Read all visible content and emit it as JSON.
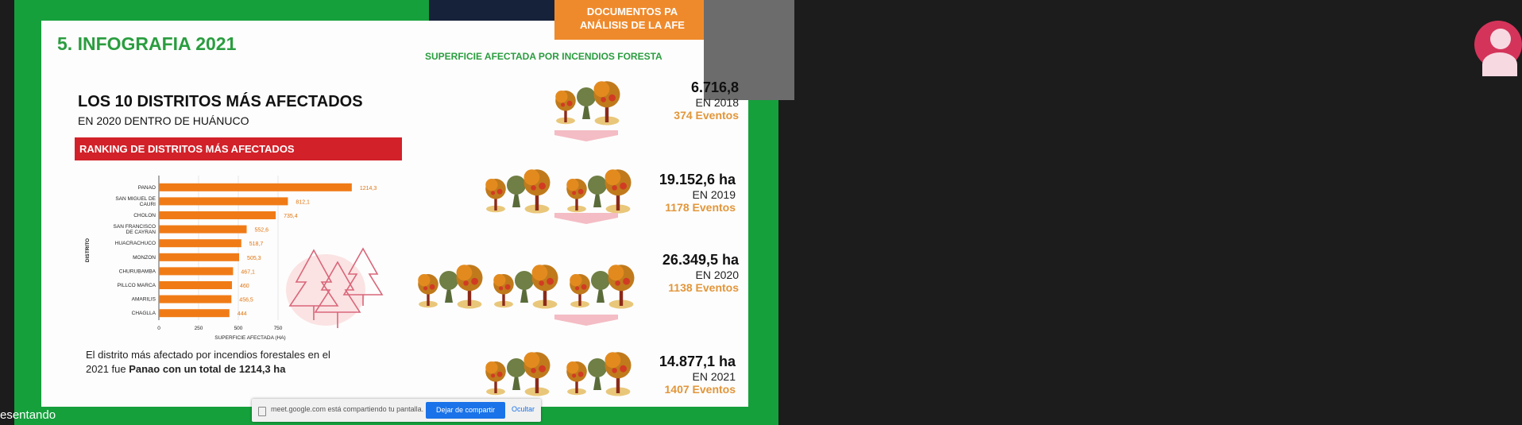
{
  "slide": {
    "heading": "5. INFOGRAFIA 2021",
    "orange_tag": [
      "DOCUMENTOS PA",
      "ANÁLISIS DE LA AFE"
    ],
    "superficie_title": "SUPERFICIE AFECTADA POR INCENDIOS FORESTA",
    "main_title": "LOS 10 DISTRITOS MÁS AFECTADOS",
    "main_subtitle": "EN 2020 DENTRO DE HUÁNUCO",
    "ranking_title": "RANKING DE DISTRITOS MÁS AFECTADOS",
    "conclusion_prefix": "El distrito más afectado por incendios forestales en el 2021 fue ",
    "conclusion_bold": "Panao con un total de 1214,3  ha"
  },
  "colors": {
    "bar": "#f07b16",
    "green": "#2a9d3f",
    "red_banner": "#d22129",
    "orange_tag": "#ef8a2c",
    "events": "#e2963a"
  },
  "chart_data": {
    "type": "bar",
    "orientation": "horizontal",
    "categories": [
      "PANAO",
      "SAN MIGUEL DE CAURI",
      "CHOLON",
      "SAN FRANCISCO DE CAYRAN",
      "HUACRACHUCO",
      "MONZON",
      "CHURUBAMBA",
      "PILLCO MARCA",
      "AMARILIS",
      "CHAGLLA"
    ],
    "category_lines": [
      [
        "PANAO"
      ],
      [
        "SAN MIGUEL DE",
        "CAURI"
      ],
      [
        "CHOLON"
      ],
      [
        "SAN FRANCISCO",
        "DE CAYRAN"
      ],
      [
        "HUACRACHUCO"
      ],
      [
        "MONZON"
      ],
      [
        "CHURUBAMBA"
      ],
      [
        "PILLCO MARCA"
      ],
      [
        "AMARILIS"
      ],
      [
        "CHAGLLA"
      ]
    ],
    "values": [
      1214.3,
      812.1,
      735.4,
      552.6,
      518.7,
      505.3,
      467.1,
      460,
      456.5,
      444
    ],
    "value_labels": [
      "1214,3",
      "812,1",
      "735,4",
      "552,6",
      "518,7",
      "505,3",
      "467,1",
      "460",
      "456,5",
      "444"
    ],
    "xlabel": "SUPERFICIE AFECTADA (HA)",
    "ylabel": "DISTRITO",
    "xticks": [
      "0",
      "250",
      "500",
      "750"
    ],
    "xtick_values": [
      0,
      250,
      500,
      750
    ],
    "xlim": [
      0,
      1250
    ]
  },
  "stats": [
    {
      "ha": "6.716,8",
      "year": "EN 2018",
      "events": "374 Eventos"
    },
    {
      "ha": "19.152,6 ha",
      "year": "EN 2019",
      "events": "1178 Eventos"
    },
    {
      "ha": "26.349,5 ha",
      "year": "EN 2020",
      "events": "1138 Eventos"
    },
    {
      "ha": "14.877,1 ha",
      "year": "EN 2021",
      "events": "1407 Eventos"
    }
  ],
  "share_bar": {
    "text": "meet.google.com está compartiendo tu pantalla.",
    "stop_button": "Dejar de compartir",
    "hide_button": "Ocultar"
  },
  "presenting_label": "esentando"
}
